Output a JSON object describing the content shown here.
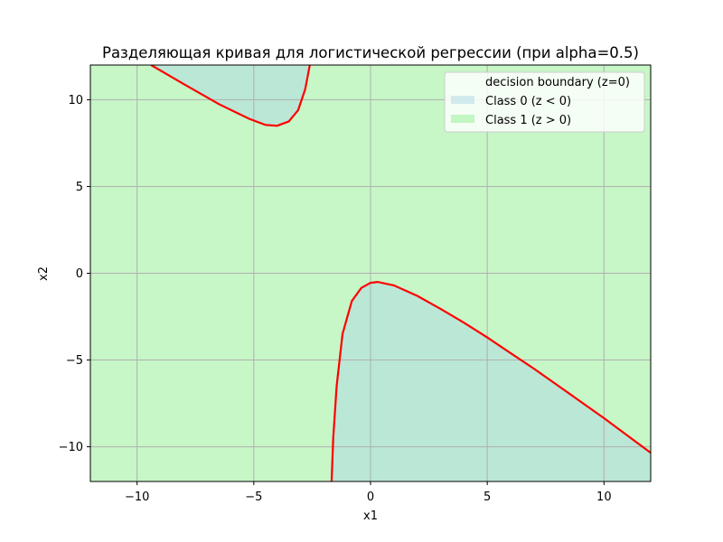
{
  "chart_data": {
    "type": "area",
    "title": "Разделяющая кривая для логистической регрессии (при alpha=0.5)",
    "xlabel": "x1",
    "ylabel": "x2",
    "xlim": [
      -12,
      12
    ],
    "ylim": [
      -12,
      12
    ],
    "xticks": [
      -10,
      -5,
      0,
      5,
      10
    ],
    "yticks": [
      -10,
      -5,
      0,
      5,
      10
    ],
    "xtick_labels": [
      "−10",
      "−5",
      "0",
      "5",
      "10"
    ],
    "ytick_labels": [
      "−10",
      "−5",
      "0",
      "5",
      "10"
    ],
    "grid": true,
    "legend_position": "top-right",
    "legend": [
      {
        "label": "decision boundary (z=0)",
        "kind": "line",
        "color": "#ff0000"
      },
      {
        "label": "Class 0 (z < 0)",
        "kind": "patch",
        "color": "#add8e6"
      },
      {
        "label": "Class 1 (z > 0)",
        "kind": "patch",
        "color": "#90ee90"
      }
    ],
    "series": [
      {
        "name": "decision boundary (z=0)",
        "color": "#ff0000",
        "branches": [
          {
            "x": [
              -9.4,
              -8.0,
              -6.5,
              -5.2,
              -4.5,
              -4.0,
              -3.5,
              -3.1,
              -2.8,
              -2.6
            ],
            "y": [
              12.0,
              10.9,
              9.75,
              8.9,
              8.55,
              8.5,
              8.75,
              9.4,
              10.6,
              12.0
            ]
          },
          {
            "x": [
              -1.67,
              -1.6,
              -1.45,
              -1.2,
              -0.8,
              -0.4,
              0.0,
              0.3,
              1.0,
              2.0,
              3.0,
              4.0,
              5.0,
              6.0,
              7.0,
              8.0,
              9.0,
              10.0,
              11.0,
              12.0
            ],
            "y": [
              -12.0,
              -9.5,
              -6.5,
              -3.5,
              -1.6,
              -0.85,
              -0.55,
              -0.5,
              -0.7,
              -1.3,
              -2.05,
              -2.85,
              -3.7,
              -4.6,
              -5.5,
              -6.45,
              -7.4,
              -8.35,
              -9.35,
              -10.35
            ]
          }
        ]
      }
    ],
    "colors": {
      "class0": "#add8e6",
      "class1": "#90ee90",
      "boundary": "#ff0000",
      "grid": "#b0b0b0"
    }
  }
}
